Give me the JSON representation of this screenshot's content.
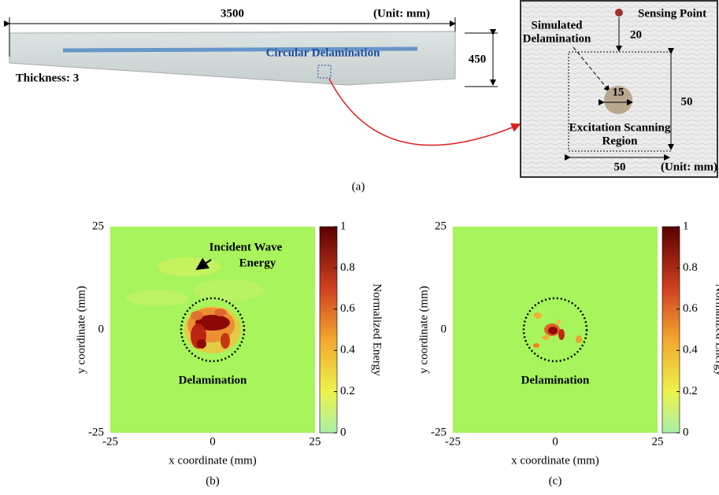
{
  "panel_a": {
    "blade": {
      "length": "3500",
      "unit": "(Unit: mm)",
      "width": "450",
      "thickness": "Thickness: 3",
      "delamination": "Circular Delamination"
    },
    "inset": {
      "sensing_point": "Sensing Point",
      "distance": "20",
      "simulated": [
        "Simulated",
        "Delamination"
      ],
      "diameter": "15",
      "region_height": "50",
      "region": [
        "Excitation Scanning",
        "Region"
      ],
      "region_width": "50",
      "unit": "(Unit: mm)"
    },
    "caption": "(a)"
  },
  "panel_b": {
    "y_ticks": [
      "25",
      "0",
      "-25"
    ],
    "x_ticks": [
      "-25",
      "0",
      "25"
    ],
    "x_label": "x coordinate (mm)",
    "y_label": "y coordinate (mm)",
    "colorbar_ticks": [
      "1",
      "0.8",
      "0.6",
      "0.4",
      "0.2",
      "0"
    ],
    "colorbar_label": "Normalized Energy",
    "annotations": [
      "Incident Wave",
      "Energy",
      "Delamination"
    ],
    "caption": "(b)"
  },
  "panel_c": {
    "y_ticks": [
      "25",
      "0",
      "-25"
    ],
    "x_ticks": [
      "-25",
      "0",
      "25"
    ],
    "x_label": "x coordinate (mm)",
    "y_label": "y coordinate (mm)",
    "colorbar_ticks": [
      "1",
      "0.8",
      "0.6",
      "0.4",
      "0.2",
      "0"
    ],
    "colorbar_label": "Normalized Energy",
    "annotations": [
      "Delamination"
    ],
    "caption": "(c)"
  }
}
